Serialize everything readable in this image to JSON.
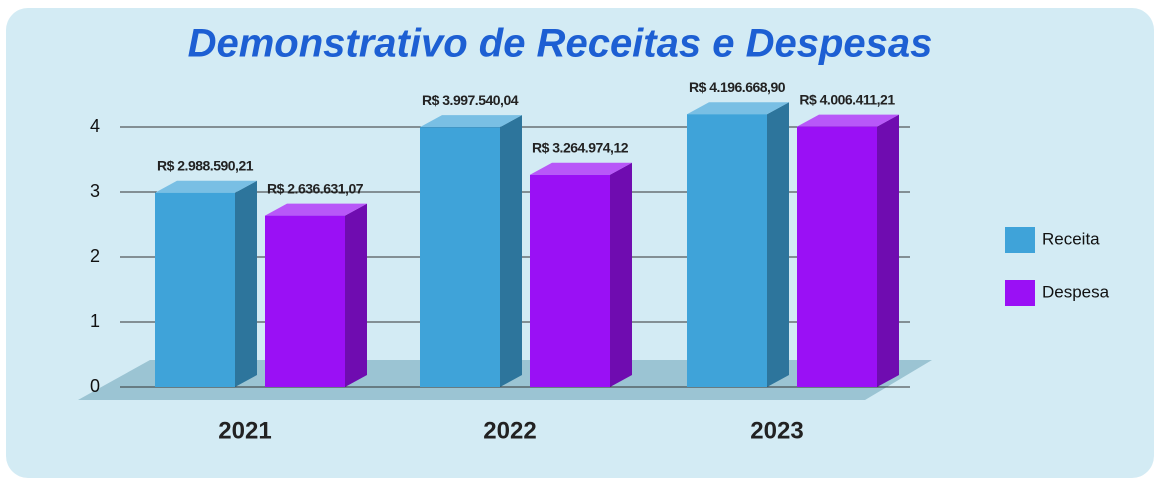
{
  "chart_data": {
    "type": "bar3d",
    "title": "Demonstrativo de Receitas e Despesas",
    "categories": [
      "2021",
      "2022",
      "2023"
    ],
    "series": [
      {
        "name": "Receita",
        "color": "#3fa3d9",
        "values": [
          2.98859021,
          3.99754004,
          4.1966689
        ],
        "value_labels": [
          "R$ 2.988.590,21",
          "R$ 3.997.540,04",
          "R$ 4.196.668,90"
        ]
      },
      {
        "name": "Despesa",
        "color": "#9a10f5",
        "values": [
          2.63663107,
          3.26497412,
          4.00641121
        ],
        "value_labels": [
          "R$ 2.636.631,07",
          "R$ 3.264.974,12",
          "R$ 4.006.411,21"
        ]
      }
    ],
    "ylim": [
      0,
      4
    ],
    "yticks": [
      0,
      1,
      2,
      3,
      4
    ],
    "grid": true,
    "legend": "right"
  }
}
